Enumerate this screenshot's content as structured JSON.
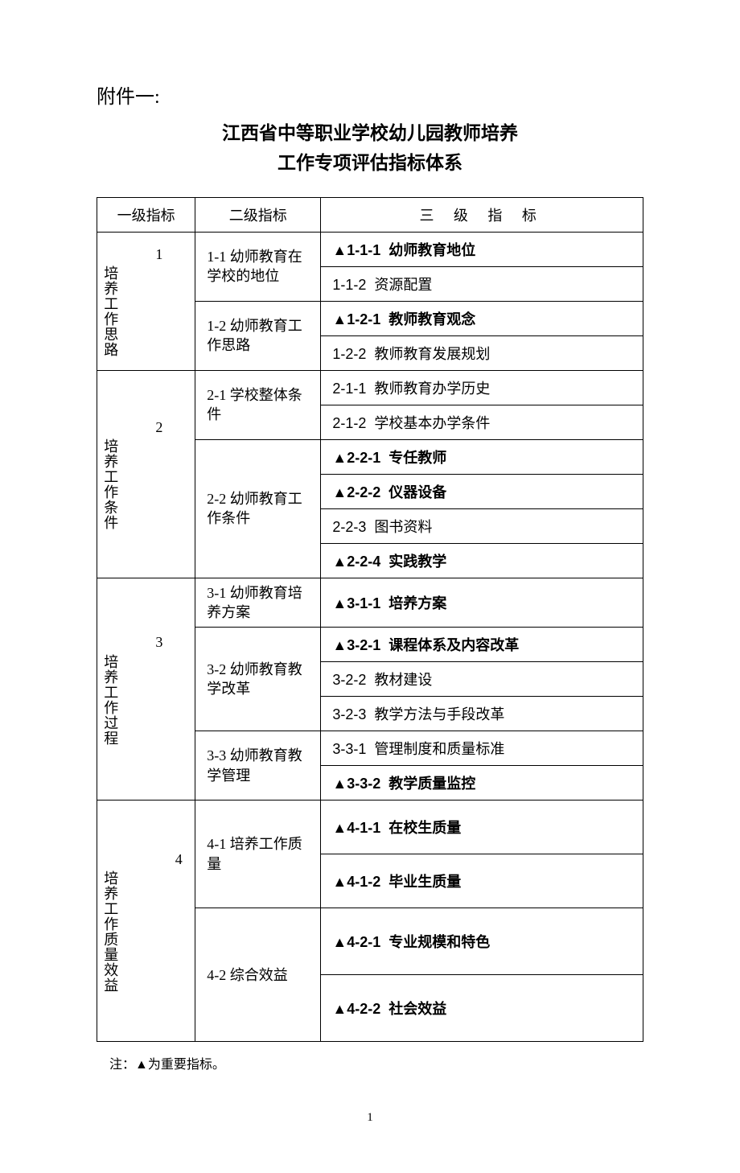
{
  "attachment_label": "附件一:",
  "title_line1": "江西省中等职业学校幼儿园教师培养",
  "title_line2": "工作专项评估指标体系",
  "headers": {
    "l1": "一级指标",
    "l2": "二级指标",
    "l3": "三 级 指 标"
  },
  "level1": [
    {
      "num": "1",
      "text": "培养工作思路"
    },
    {
      "num": "2",
      "text": "培养工作条件"
    },
    {
      "num": "3",
      "text": "培养工作过程"
    },
    {
      "num": "4",
      "text": "培养工作质量效益"
    }
  ],
  "level2": [
    {
      "text": "1-1 幼师教育在学校的地位"
    },
    {
      "text": "1-2 幼师教育工作思路"
    },
    {
      "text": "2-1 学校整体条件"
    },
    {
      "text": "2-2 幼师教育工作条件"
    },
    {
      "text": "3-1 幼师教育培养方案"
    },
    {
      "text": "3-2 幼师教育教学改革"
    },
    {
      "text": "3-3 幼师教育教学管理"
    },
    {
      "text": "4-1 培养工作质量"
    },
    {
      "text": "4-2 综合效益"
    }
  ],
  "level3": [
    {
      "important": true,
      "code": "1-1-1",
      "name": "幼师教育地位"
    },
    {
      "important": false,
      "code": "1-1-2",
      "name": "资源配置"
    },
    {
      "important": true,
      "code": "1-2-1",
      "name": "教师教育观念"
    },
    {
      "important": false,
      "code": "1-2-2",
      "name": "教师教育发展规划"
    },
    {
      "important": false,
      "code": "2-1-1",
      "name": "教师教育办学历史"
    },
    {
      "important": false,
      "code": "2-1-2",
      "name": "学校基本办学条件"
    },
    {
      "important": true,
      "code": "2-2-1",
      "name": "专任教师"
    },
    {
      "important": true,
      "code": "2-2-2",
      "name": "仪器设备"
    },
    {
      "important": false,
      "code": "2-2-3",
      "name": "图书资料"
    },
    {
      "important": true,
      "code": "2-2-4",
      "name": "实践教学"
    },
    {
      "important": true,
      "code": "3-1-1",
      "name": "培养方案"
    },
    {
      "important": true,
      "code": "3-2-1",
      "name": "课程体系及内容改革"
    },
    {
      "important": false,
      "code": "3-2-2",
      "name": "教材建设"
    },
    {
      "important": false,
      "code": "3-2-3",
      "name": "教学方法与手段改革"
    },
    {
      "important": false,
      "code": "3-3-1",
      "name": "管理制度和质量标准"
    },
    {
      "important": true,
      "code": "3-3-2",
      "name": "教学质量监控"
    },
    {
      "important": true,
      "code": "4-1-1",
      "name": "在校生质量"
    },
    {
      "important": true,
      "code": "4-1-2",
      "name": "毕业生质量"
    },
    {
      "important": true,
      "code": "4-2-1",
      "name": "专业规模和特色"
    },
    {
      "important": true,
      "code": "4-2-2",
      "name": "社会效益"
    }
  ],
  "important_marker": "▲",
  "note": "注：▲为重要指标。",
  "page_number": "1"
}
